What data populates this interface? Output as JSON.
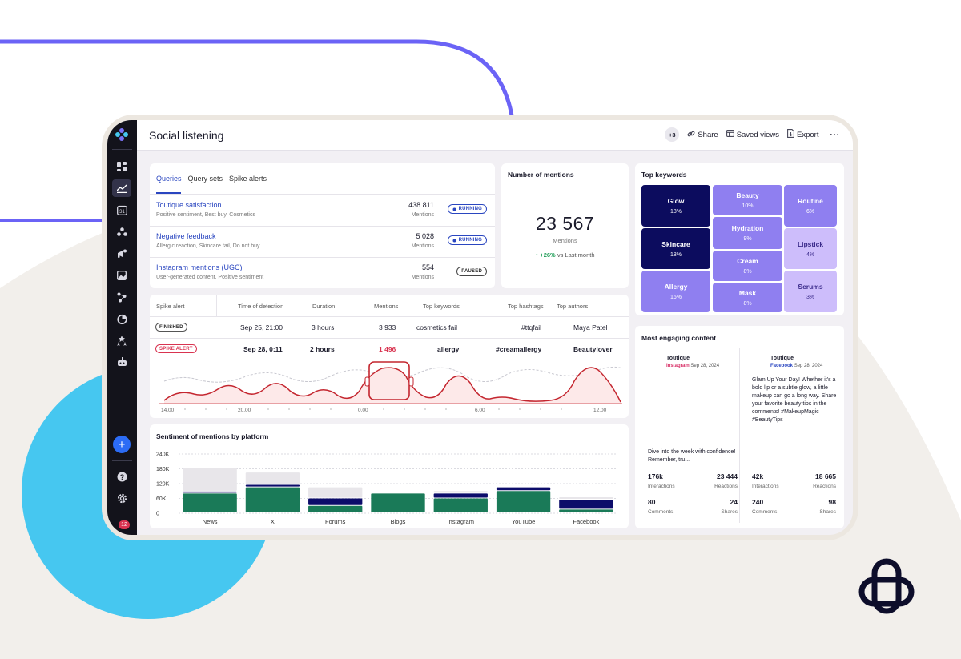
{
  "colors": {
    "accent": "#2a46c0",
    "brand_line": "#6b63f6",
    "blob_blue": "#46c7f0",
    "keyword_dark": "#0c0c5e",
    "keyword_mid": "#8f7ff0",
    "keyword_light": "#cdbdfb",
    "positive": "#1a7a58",
    "negative": "#0c0c6a",
    "neutral": "#e8e6ea",
    "spike": "#c4262f"
  },
  "header": {
    "title": "Social listening",
    "collaborators_count": "+3",
    "share_label": "Share",
    "saved_views_label": "Saved views",
    "export_label": "Export",
    "more_label": "···"
  },
  "sidebar": {
    "icons": [
      "dashboard-icon",
      "listening-icon",
      "calendar-icon",
      "users-icon",
      "campaign-icon",
      "image-icon",
      "network-icon",
      "analytics-icon",
      "stars-icon",
      "bot-icon"
    ],
    "calendar_day": "31",
    "add_label": "+",
    "notifications_count": "12"
  },
  "queries": {
    "tabs": [
      "Queries",
      "Query sets",
      "Spike alerts"
    ],
    "items": [
      {
        "name": "Toutique satisfaction",
        "desc": "Positive sentiment, Best buy, Cosmetics",
        "count": "438 811",
        "unit": "Mentions",
        "status": "RUNNING"
      },
      {
        "name": "Negative feedback",
        "desc": "Allergic reaction, Skincare fail, Do not buy",
        "count": "5 028",
        "unit": "Mentions",
        "status": "RUNNING"
      },
      {
        "name": "Instagram mentions (UGC)",
        "desc": "User-generated content, Positive sentiment",
        "count": "554",
        "unit": "Mentions",
        "status": "PAUSED"
      }
    ]
  },
  "mentions": {
    "title": "Number of mentions",
    "value": "23 567",
    "unit": "Mentions",
    "change": "+26%",
    "change_suffix": "vs Last month"
  },
  "spike": {
    "headers": [
      "Spike alert",
      "Time of detection",
      "Duration",
      "Mentions",
      "Top keywords",
      "Top hashtags",
      "Top authors"
    ],
    "rows": [
      {
        "status": "FINISHED",
        "time": "Sep 25, 21:00",
        "duration": "3 hours",
        "mentions": "3 933",
        "keyword": "cosmetics fail",
        "hashtag": "#ttqfail",
        "author": "Maya Patel"
      },
      {
        "status": "SPIKE ALERT",
        "time": "Sep 28, 0:11",
        "duration": "2 hours",
        "mentions": "1 496",
        "keyword": "allergy",
        "hashtag": "#creamallergy",
        "author": "Beautylover"
      }
    ],
    "timeline_ticks": [
      "14.00",
      "20.00",
      "0.00",
      "6.00",
      "12.00"
    ]
  },
  "keywords": {
    "title": "Top keywords",
    "items": [
      {
        "name": "Glow",
        "pct": "18%"
      },
      {
        "name": "Skincare",
        "pct": "18%"
      },
      {
        "name": "Allergy",
        "pct": "16%"
      },
      {
        "name": "Beauty",
        "pct": "10%"
      },
      {
        "name": "Hydration",
        "pct": "9%"
      },
      {
        "name": "Cream",
        "pct": "8%"
      },
      {
        "name": "Mask",
        "pct": "8%"
      },
      {
        "name": "Routine",
        "pct": "6%"
      },
      {
        "name": "Lipstick",
        "pct": "4%"
      },
      {
        "name": "Serums",
        "pct": "3%"
      }
    ]
  },
  "engaging": {
    "title": "Most engaging content",
    "posts": [
      {
        "author": "Toutique",
        "platform": "Instagram",
        "date": "Sep 28, 2024",
        "text": "Dive into the week with confidence! Remember, tru...",
        "interactions": "176k",
        "reactions": "23 444",
        "comments": "80",
        "shares": "24"
      },
      {
        "author": "Toutique",
        "platform": "Facebook",
        "date": "Sep 28, 2024",
        "text": "Glam Up Your Day! Whether it's a bold lip or a subtle glow, a little makeup can go a long way. Share your favorite beauty tips in the comments! #MakeupMagic #BeautyTips",
        "interactions": "42k",
        "reactions": "18 665",
        "comments": "240",
        "shares": "98"
      }
    ],
    "labels": {
      "interactions": "Interactions",
      "reactions": "Reactions",
      "comments": "Comments",
      "shares": "Shares"
    }
  },
  "chart_data": {
    "type": "bar",
    "title": "Sentiment of mentions by platform",
    "categories": [
      "News",
      "X",
      "Forums",
      "Blogs",
      "Instagram",
      "YouTube",
      "Facebook"
    ],
    "series": [
      {
        "values": [
          80000,
          105000,
          30000,
          80000,
          60000,
          90000,
          15000
        ]
      },
      {
        "values": [
          8000,
          10000,
          30000,
          0,
          20000,
          15000,
          40000
        ]
      },
      {
        "values": [
          95000,
          50000,
          45000,
          0,
          10000,
          0,
          10000
        ]
      }
    ],
    "yticks": [
      "240K",
      "180K",
      "120K",
      "60K",
      "0"
    ],
    "ylim": [
      0,
      240000
    ],
    "stacked": true,
    "grid": true
  }
}
